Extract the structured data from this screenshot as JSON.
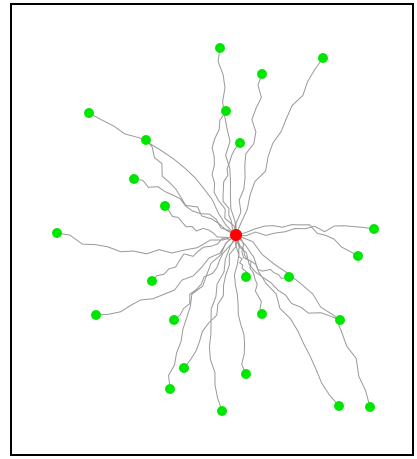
{
  "diagram": {
    "type": "radial-tree",
    "root_color": "#ff0000",
    "leaf_color": "#00e600",
    "edge_color": "#999999",
    "border_color": "#000000",
    "leaf_count": 24
  }
}
